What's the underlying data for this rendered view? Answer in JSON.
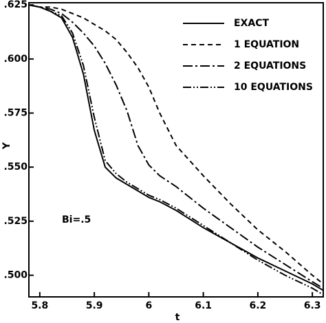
{
  "chart_data": {
    "type": "line",
    "x_label": "t",
    "y_label": "Y",
    "annotation": "Bi=.5",
    "x": [
      5.78,
      5.8,
      5.82,
      5.84,
      5.86,
      5.88,
      5.9,
      5.92,
      5.94,
      5.96,
      5.98,
      6.0,
      6.02,
      6.05,
      6.1,
      6.15,
      6.2,
      6.25,
      6.3,
      6.32
    ],
    "series": [
      {
        "name": "EXACT",
        "color": "#000000",
        "dash": "solid",
        "values": [
          0.625,
          0.624,
          0.622,
          0.619,
          0.61,
          0.593,
          0.567,
          0.55,
          0.545,
          0.542,
          0.539,
          0.536,
          0.534,
          0.53,
          0.522,
          0.515,
          0.508,
          0.502,
          0.496,
          0.493
        ]
      },
      {
        "name": "1 EQUATION",
        "color": "#000000",
        "dash": "dashed",
        "values": [
          0.625,
          0.624,
          0.624,
          0.623,
          0.621,
          0.619,
          0.616,
          0.613,
          0.609,
          0.603,
          0.596,
          0.587,
          0.575,
          0.56,
          0.546,
          0.533,
          0.521,
          0.511,
          0.5,
          0.496
        ]
      },
      {
        "name": "2 EQUATIONS",
        "color": "#000000",
        "dash": "dashdot",
        "values": [
          0.625,
          0.624,
          0.623,
          0.621,
          0.617,
          0.612,
          0.606,
          0.598,
          0.588,
          0.576,
          0.56,
          0.551,
          0.546,
          0.541,
          0.531,
          0.522,
          0.513,
          0.505,
          0.497,
          0.494
        ]
      },
      {
        "name": "10 EQUATIONS",
        "color": "#000000",
        "dash": "dashdotdot",
        "values": [
          0.625,
          0.624,
          0.622,
          0.62,
          0.612,
          0.597,
          0.573,
          0.553,
          0.547,
          0.543,
          0.54,
          0.537,
          0.535,
          0.531,
          0.523,
          0.515,
          0.507,
          0.5,
          0.494,
          0.491
        ]
      }
    ],
    "xlim": [
      5.78,
      6.32
    ],
    "xticks": [
      5.8,
      5.9,
      6.0,
      6.1,
      6.2,
      6.3
    ],
    "ylim": [
      0.49,
      0.626
    ],
    "yticks": [
      {
        "value": 0.5,
        "label": ".500"
      },
      {
        "value": 0.525,
        "label": ".525"
      },
      {
        "value": 0.55,
        "label": ".550"
      },
      {
        "value": 0.575,
        "label": ".575"
      },
      {
        "value": 0.6,
        "label": ".600"
      },
      {
        "value": 0.625,
        "label": ".625"
      }
    ],
    "legend": "upper-right"
  }
}
